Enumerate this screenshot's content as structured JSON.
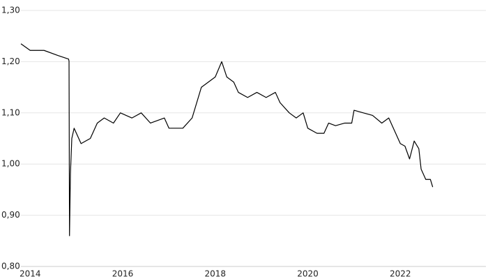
{
  "chart_data": {
    "type": "line",
    "x": [
      2013.8,
      2014.0,
      2014.3,
      2014.6,
      2014.83,
      2014.84,
      2014.85,
      2014.87,
      2014.9,
      2014.95,
      2015.1,
      2015.3,
      2015.45,
      2015.6,
      2015.8,
      2015.95,
      2016.2,
      2016.4,
      2016.6,
      2016.9,
      2017.0,
      2017.3,
      2017.5,
      2017.7,
      2017.85,
      2018.0,
      2018.14,
      2018.25,
      2018.4,
      2018.5,
      2018.7,
      2018.9,
      2019.1,
      2019.3,
      2019.4,
      2019.6,
      2019.75,
      2019.9,
      2020.0,
      2020.2,
      2020.35,
      2020.45,
      2020.6,
      2020.8,
      2020.95,
      2021.0,
      2021.2,
      2021.4,
      2021.6,
      2021.75,
      2021.9,
      2022.0,
      2022.1,
      2022.2,
      2022.3,
      2022.4,
      2022.45,
      2022.55,
      2022.65,
      2022.7
    ],
    "series": [
      {
        "color": "#000000",
        "values": [
          1.235,
          1.222,
          1.222,
          1.212,
          1.205,
          1.201,
          0.86,
          0.98,
          1.05,
          1.07,
          1.04,
          1.05,
          1.08,
          1.09,
          1.08,
          1.1,
          1.09,
          1.1,
          1.08,
          1.09,
          1.07,
          1.07,
          1.09,
          1.15,
          1.16,
          1.17,
          1.2,
          1.17,
          1.16,
          1.14,
          1.13,
          1.14,
          1.13,
          1.14,
          1.12,
          1.1,
          1.09,
          1.1,
          1.07,
          1.06,
          1.06,
          1.08,
          1.075,
          1.08,
          1.08,
          1.105,
          1.1,
          1.095,
          1.08,
          1.09,
          1.06,
          1.04,
          1.035,
          1.01,
          1.045,
          1.03,
          0.99,
          0.97,
          0.97,
          0.955
        ]
      }
    ],
    "xlim": [
      2013.8,
      2023.85
    ],
    "xticks": [
      2014,
      2016,
      2018,
      2020,
      2022
    ],
    "ylim": [
      0.8,
      1.3
    ],
    "yticks": [
      {
        "value": 0.8,
        "label": "0,80"
      },
      {
        "value": 0.9,
        "label": "0,90"
      },
      {
        "value": 1.0,
        "label": "1,00"
      },
      {
        "value": 1.1,
        "label": "1,10"
      },
      {
        "value": 1.2,
        "label": "1,20"
      },
      {
        "value": 1.3,
        "label": "1,30"
      }
    ],
    "grid": true
  }
}
